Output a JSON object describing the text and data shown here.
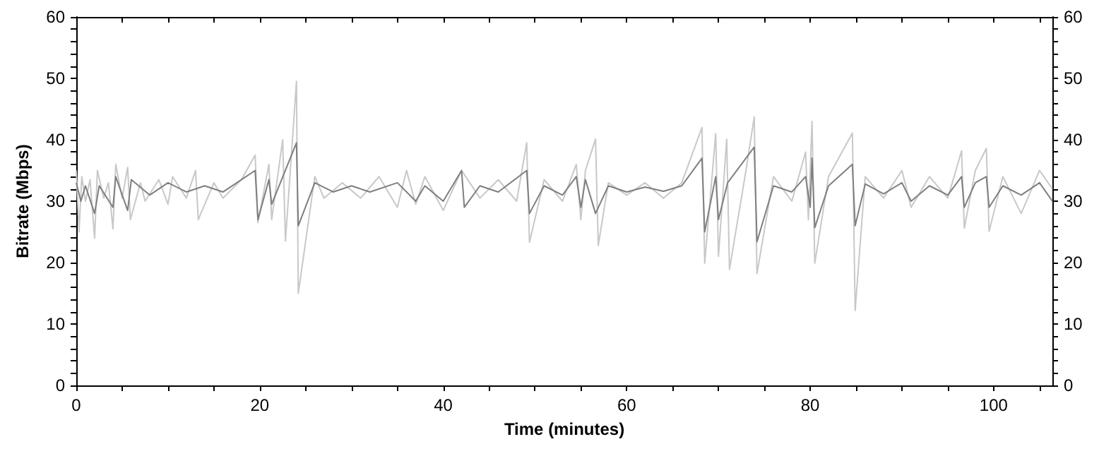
{
  "chart_data": {
    "type": "line",
    "xlabel": "Time (minutes)",
    "ylabel": "Bitrate (Mbps)",
    "xlim": [
      0,
      106.4
    ],
    "ylim": [
      0,
      60
    ],
    "y2lim": [
      0,
      60
    ],
    "xticks": [
      0,
      {
        "value": 5,
        "label": null
      },
      {
        "value": 10,
        "label": null
      },
      {
        "value": 15,
        "label": null
      },
      20,
      {
        "value": 25,
        "label": null
      },
      {
        "value": 30,
        "label": null
      },
      {
        "value": 35,
        "label": null
      },
      40,
      {
        "value": 45,
        "label": null
      },
      {
        "value": 50,
        "label": null
      },
      {
        "value": 55,
        "label": null
      },
      60,
      {
        "value": 65,
        "label": null
      },
      {
        "value": 70,
        "label": null
      },
      {
        "value": 75,
        "label": null
      },
      80,
      {
        "value": 85,
        "label": null
      },
      {
        "value": 90,
        "label": null
      },
      {
        "value": 95,
        "label": null
      },
      100,
      {
        "value": 105,
        "label": null
      }
    ],
    "yticks": [
      0,
      {
        "value": 2,
        "label": null
      },
      {
        "value": 4,
        "label": null
      },
      {
        "value": 6,
        "label": null
      },
      {
        "value": 8,
        "label": null
      },
      10,
      {
        "value": 12,
        "label": null
      },
      {
        "value": 14,
        "label": null
      },
      {
        "value": 16,
        "label": null
      },
      {
        "value": 18,
        "label": null
      },
      20,
      {
        "value": 22,
        "label": null
      },
      {
        "value": 24,
        "label": null
      },
      {
        "value": 26,
        "label": null
      },
      {
        "value": 28,
        "label": null
      },
      30,
      {
        "value": 32,
        "label": null
      },
      {
        "value": 34,
        "label": null
      },
      {
        "value": 36,
        "label": null
      },
      {
        "value": 38,
        "label": null
      },
      40,
      {
        "value": 42,
        "label": null
      },
      {
        "value": 44,
        "label": null
      },
      {
        "value": 46,
        "label": null
      },
      {
        "value": 48,
        "label": null
      },
      50,
      {
        "value": 52,
        "label": null
      },
      {
        "value": 54,
        "label": null
      },
      {
        "value": 56,
        "label": null
      },
      {
        "value": 58,
        "label": null
      },
      60
    ],
    "y2ticks": [
      0,
      {
        "value": 2,
        "label": null
      },
      {
        "value": 4,
        "label": null
      },
      {
        "value": 6,
        "label": null
      },
      {
        "value": 8,
        "label": null
      },
      10,
      {
        "value": 12,
        "label": null
      },
      {
        "value": 14,
        "label": null
      },
      {
        "value": 16,
        "label": null
      },
      {
        "value": 18,
        "label": null
      },
      20,
      {
        "value": 22,
        "label": null
      },
      {
        "value": 24,
        "label": null
      },
      {
        "value": 26,
        "label": null
      },
      {
        "value": 28,
        "label": null
      },
      30,
      {
        "value": 32,
        "label": null
      },
      {
        "value": 34,
        "label": null
      },
      {
        "value": 36,
        "label": null
      },
      {
        "value": 38,
        "label": null
      },
      40,
      {
        "value": 42,
        "label": null
      },
      {
        "value": 44,
        "label": null
      },
      {
        "value": 46,
        "label": null
      },
      {
        "value": 48,
        "label": null
      },
      50,
      {
        "value": 52,
        "label": null
      },
      {
        "value": 54,
        "label": null
      },
      {
        "value": 56,
        "label": null
      },
      {
        "value": 58,
        "label": null
      },
      60
    ],
    "grid": false,
    "marker": "none",
    "line_style": "solid",
    "series": [
      {
        "color": "#c8c8c8",
        "x": [
          0,
          0.3,
          0.6,
          1,
          1.5,
          2,
          2.3,
          3,
          3.5,
          4,
          4.3,
          5,
          5.6,
          5.9,
          7,
          7.5,
          9,
          10,
          10.5,
          12,
          13,
          13.3,
          15,
          16,
          18,
          19.5,
          19.8,
          21,
          21.3,
          22.5,
          22.8,
          24,
          24.2,
          26,
          27,
          29,
          31,
          33,
          35,
          36,
          37,
          38,
          40,
          42,
          44,
          46,
          48,
          49.1,
          49.4,
          51,
          53,
          54.5,
          55,
          55.5,
          56.6,
          56.9,
          58,
          60,
          62,
          64,
          66,
          68.2,
          68.5,
          69.7,
          70,
          70.9,
          71.2,
          73,
          73.9,
          74.2,
          76,
          78,
          79.5,
          79.8,
          80.2,
          80.5,
          82,
          84.6,
          84.9,
          86,
          88,
          90,
          91,
          93,
          95,
          96.5,
          96.8,
          98,
          99.2,
          99.5,
          101,
          103,
          105,
          106.4
        ],
        "values": [
          35,
          25,
          34,
          30,
          33.5,
          24,
          35,
          30.5,
          33,
          25.5,
          36,
          30.5,
          35.5,
          27,
          33,
          30,
          33.5,
          29.5,
          34,
          30.5,
          35,
          27,
          33,
          30.5,
          33.5,
          37.5,
          26.5,
          36,
          27,
          40,
          23.5,
          49.5,
          15,
          34,
          30.5,
          33,
          30.5,
          34,
          29,
          35,
          29.5,
          34,
          28.5,
          35,
          30.5,
          33.5,
          30,
          39.5,
          23.3,
          33.5,
          30,
          36,
          27,
          35,
          40.1,
          22.8,
          33,
          31,
          33,
          30.5,
          33,
          42,
          19.9,
          41,
          21,
          40.1,
          18.9,
          35,
          43.7,
          18.2,
          34,
          30,
          38,
          27,
          43,
          19.9,
          34,
          41.1,
          12.2,
          34,
          30.5,
          35,
          29,
          34,
          30.5,
          38.2,
          25.6,
          35,
          38.6,
          25.1,
          34,
          28,
          35,
          32
        ]
      },
      {
        "color": "#7f7f7f",
        "x": [
          0,
          0.5,
          1,
          2,
          2.5,
          4,
          4.3,
          5.6,
          6,
          8,
          10,
          12,
          14,
          16,
          19.5,
          19.8,
          21,
          21.3,
          24,
          24.2,
          26,
          28,
          30,
          32,
          35,
          37,
          38,
          40,
          42,
          42.3,
          44,
          46,
          49.1,
          49.4,
          51,
          53,
          54.5,
          55,
          55.5,
          56.6,
          58,
          60,
          62,
          64,
          66,
          68.2,
          68.5,
          69.7,
          70,
          71,
          73.9,
          74.2,
          76,
          78,
          79.5,
          80,
          80.2,
          80.5,
          82,
          84.6,
          84.9,
          86,
          88,
          90,
          91,
          93,
          95,
          96.5,
          96.8,
          98,
          99.2,
          99.5,
          101,
          103,
          105,
          106.4
        ],
        "values": [
          33,
          30,
          32.5,
          28,
          32.5,
          29,
          34,
          28.5,
          33.5,
          31,
          33,
          31.5,
          32.5,
          31.5,
          35,
          27,
          33.5,
          29.5,
          39.5,
          26,
          33,
          31.5,
          32.5,
          31.5,
          33,
          30,
          32.5,
          30,
          35,
          29,
          32.5,
          31.5,
          35,
          28,
          32.5,
          31,
          34,
          29,
          33.5,
          28,
          32.5,
          31.5,
          32.3,
          31.6,
          32.5,
          37,
          25,
          34,
          27,
          33,
          38.8,
          23.4,
          32.5,
          31.5,
          34,
          29,
          37,
          25.7,
          32.5,
          36,
          26,
          32.8,
          31.2,
          33,
          30,
          32.5,
          31,
          34,
          29,
          33,
          34,
          29,
          32.5,
          31,
          33,
          30
        ]
      }
    ]
  }
}
